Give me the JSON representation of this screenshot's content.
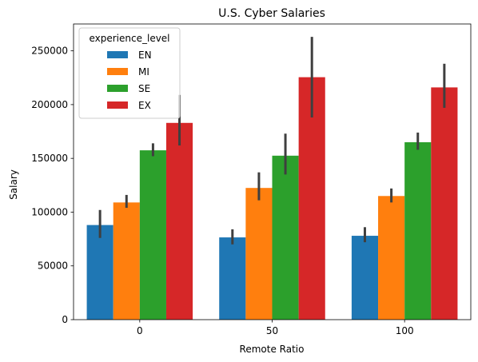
{
  "chart_data": {
    "type": "bar",
    "title": "U.S. Cyber Salaries",
    "xlabel": "Remote Ratio",
    "ylabel": "Salary",
    "categories": [
      "0",
      "50",
      "100"
    ],
    "ylim": [
      0,
      275000
    ],
    "yticks": [
      0,
      50000,
      100000,
      150000,
      200000,
      250000
    ],
    "grid": false,
    "legend": {
      "title": "experience_level",
      "placement": "top-left"
    },
    "series": [
      {
        "name": "EN",
        "color": "#1f77b4",
        "values": [
          88000,
          76500,
          78000
        ],
        "ci_low": [
          76000,
          70000,
          72000
        ],
        "ci_high": [
          102000,
          84000,
          86000
        ]
      },
      {
        "name": "MI",
        "color": "#ff7f0e",
        "values": [
          109000,
          122500,
          115000
        ],
        "ci_low": [
          104000,
          111000,
          109000
        ],
        "ci_high": [
          116000,
          137000,
          122000
        ]
      },
      {
        "name": "SE",
        "color": "#2ca02c",
        "values": [
          157500,
          152500,
          165000
        ],
        "ci_low": [
          152000,
          135000,
          158000
        ],
        "ci_high": [
          164000,
          173000,
          174000
        ]
      },
      {
        "name": "EX",
        "color": "#d62728",
        "values": [
          183000,
          225500,
          216000
        ],
        "ci_low": [
          162000,
          188000,
          197000
        ],
        "ci_high": [
          209000,
          263000,
          238000
        ]
      }
    ],
    "errorbar_color": "#3f3f3f"
  }
}
